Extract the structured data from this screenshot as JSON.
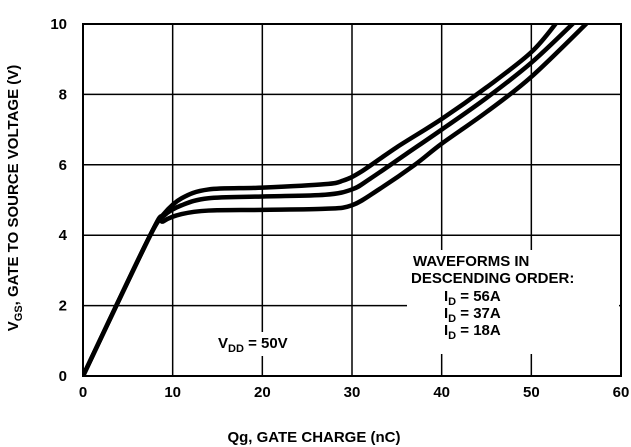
{
  "chart_data": {
    "type": "line",
    "title": "",
    "xlabel": "Qg, GATE CHARGE (nC)",
    "ylabel": {
      "main": "V",
      "sub": "GS",
      "rest": ", GATE TO SOURCE VOLTAGE (V)"
    },
    "xlim": [
      0,
      60
    ],
    "ylim": [
      0,
      10
    ],
    "x_ticks": [
      "0",
      "10",
      "20",
      "30",
      "40",
      "50",
      "60"
    ],
    "y_ticks": [
      "0",
      "2",
      "4",
      "6",
      "8",
      "10"
    ],
    "grid": true,
    "series": [
      {
        "name": "I_D = 56A",
        "points": [
          [
            0,
            0
          ],
          [
            7.5,
            4.0
          ],
          [
            9,
            4.6
          ],
          [
            11,
            5.05
          ],
          [
            14,
            5.3
          ],
          [
            20,
            5.35
          ],
          [
            27,
            5.45
          ],
          [
            29,
            5.55
          ],
          [
            31,
            5.8
          ],
          [
            35,
            6.5
          ],
          [
            40,
            7.3
          ],
          [
            45,
            8.2
          ],
          [
            50,
            9.2
          ],
          [
            53,
            10.1
          ]
        ]
      },
      {
        "name": "I_D = 37A",
        "points": [
          [
            0,
            0
          ],
          [
            7.5,
            4.0
          ],
          [
            9,
            4.55
          ],
          [
            11,
            4.85
          ],
          [
            14,
            5.05
          ],
          [
            20,
            5.1
          ],
          [
            27,
            5.15
          ],
          [
            30,
            5.3
          ],
          [
            32,
            5.6
          ],
          [
            36,
            6.3
          ],
          [
            40,
            7.0
          ],
          [
            45,
            7.9
          ],
          [
            50,
            8.9
          ],
          [
            55,
            10.1
          ]
        ]
      },
      {
        "name": "I_D = 18A",
        "points": [
          [
            0,
            0
          ],
          [
            7.5,
            4.0
          ],
          [
            9,
            4.4
          ],
          [
            11,
            4.6
          ],
          [
            14,
            4.7
          ],
          [
            20,
            4.72
          ],
          [
            27,
            4.75
          ],
          [
            30,
            4.85
          ],
          [
            33,
            5.3
          ],
          [
            37,
            6.0
          ],
          [
            40,
            6.6
          ],
          [
            45,
            7.5
          ],
          [
            50,
            8.5
          ],
          [
            56.5,
            10.1
          ]
        ]
      }
    ],
    "annotations": {
      "vdd": {
        "main": "V",
        "sub": "DD",
        "rest": " = 50V"
      },
      "legend_title_1": "WAVEFORMS IN",
      "legend_title_2": "DESCENDING ORDER:",
      "legend_items": [
        {
          "main": "I",
          "sub": "D",
          "rest": " = 56A"
        },
        {
          "main": "I",
          "sub": "D",
          "rest": " = 37A"
        },
        {
          "main": "I",
          "sub": "D",
          "rest": " = 18A"
        }
      ]
    }
  }
}
